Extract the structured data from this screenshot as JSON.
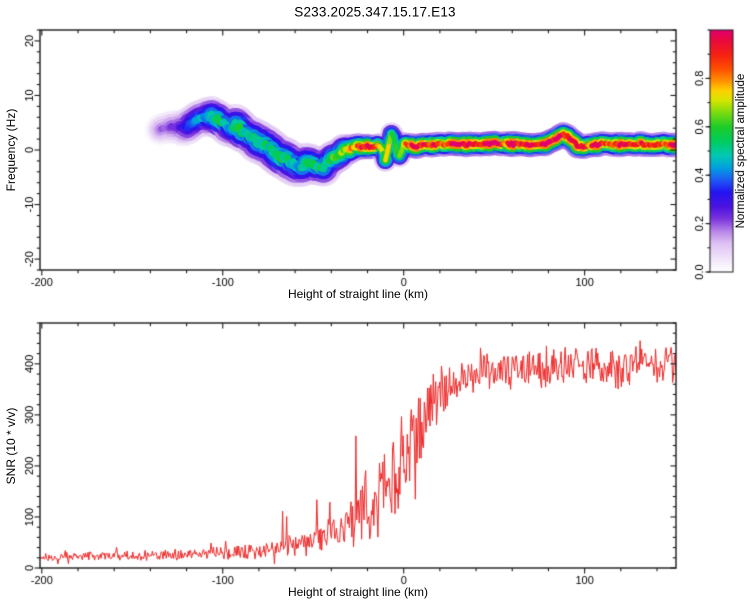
{
  "title": "S233.2025.347.15.17.E13",
  "colors": {
    "background": "#ffffff",
    "frame": "#1c1c1c",
    "text": "#000000",
    "snr_line": "#ee2a2a"
  },
  "chart_data": [
    {
      "type": "heatmap",
      "name": "spectrogram",
      "xlabel": "Height of straight line (km)",
      "ylabel": "Frequency (Hz)",
      "xlim": [
        -201,
        150.5
      ],
      "ylim": [
        -22,
        22
      ],
      "x_ticks": [
        -200,
        -100,
        0,
        100
      ],
      "x_minor_step": 20,
      "y_ticks": [
        20,
        10,
        0,
        -10,
        -20
      ],
      "y_minor_step": 2,
      "colorbar": {
        "label": "Normalized spectral amplitude",
        "ticks": [
          0.0,
          0.2,
          0.4,
          0.6,
          0.8
        ],
        "minor_step": 0.1,
        "range": [
          0.0,
          1.0
        ]
      },
      "colormap_stops": [
        [
          0.0,
          "#ffffff"
        ],
        [
          0.06,
          "#f0e2fa"
        ],
        [
          0.12,
          "#ddc0f2"
        ],
        [
          0.17,
          "#b683e8"
        ],
        [
          0.22,
          "#7a34dd"
        ],
        [
          0.27,
          "#4b13e0"
        ],
        [
          0.33,
          "#2414f2"
        ],
        [
          0.38,
          "#1e5af5"
        ],
        [
          0.43,
          "#00a0e0"
        ],
        [
          0.48,
          "#00c8b4"
        ],
        [
          0.54,
          "#00cc5e"
        ],
        [
          0.6,
          "#1ecc28"
        ],
        [
          0.66,
          "#7edc0e"
        ],
        [
          0.71,
          "#d8e600"
        ],
        [
          0.75,
          "#ffd000"
        ],
        [
          0.79,
          "#ff9000"
        ],
        [
          0.84,
          "#ff4e00"
        ],
        [
          0.9,
          "#f42014"
        ],
        [
          0.96,
          "#ea0840"
        ],
        [
          1.0,
          "#e00070"
        ]
      ],
      "signal_track": [
        [
          -135,
          3.5,
          0.15,
          1.7
        ],
        [
          -128,
          4.5,
          0.22,
          1.8
        ],
        [
          -122,
          4.0,
          0.28,
          1.9
        ],
        [
          -116,
          5.0,
          0.35,
          2.0
        ],
        [
          -111,
          5.8,
          0.45,
          2.1
        ],
        [
          -106,
          6.3,
          0.5,
          2.1
        ],
        [
          -101,
          5.2,
          0.52,
          2.1
        ],
        [
          -97,
          4.0,
          0.48,
          2.1
        ],
        [
          -93,
          4.6,
          0.5,
          2.2
        ],
        [
          -89,
          3.2,
          0.5,
          2.2
        ],
        [
          -85,
          2.4,
          0.52,
          2.2
        ],
        [
          -81,
          1.6,
          0.48,
          2.3
        ],
        [
          -77,
          0.8,
          0.5,
          2.3
        ],
        [
          -73,
          -0.2,
          0.5,
          2.3
        ],
        [
          -69,
          -1.0,
          0.52,
          2.3
        ],
        [
          -65,
          -1.8,
          0.52,
          2.3
        ],
        [
          -61,
          -2.6,
          0.55,
          2.3
        ],
        [
          -57,
          -3.1,
          0.52,
          2.2
        ],
        [
          -53,
          -2.2,
          0.55,
          2.2
        ],
        [
          -49,
          -2.8,
          0.52,
          2.1
        ],
        [
          -45,
          -3.4,
          0.55,
          2.1
        ],
        [
          -41,
          -2.0,
          0.58,
          2.0
        ],
        [
          -37,
          -1.0,
          0.6,
          1.9
        ],
        [
          -33,
          -0.2,
          0.65,
          1.8
        ],
        [
          -29,
          0.4,
          0.72,
          1.6
        ],
        [
          -25,
          0.6,
          0.85,
          1.45
        ],
        [
          -21,
          0.7,
          0.93,
          1.35
        ],
        [
          -17,
          0.6,
          0.9,
          1.35
        ],
        [
          -13,
          0.8,
          0.86,
          1.35
        ],
        [
          -11,
          -0.5,
          0.72,
          1.3
        ],
        [
          -10,
          -1.8,
          0.66,
          1.3
        ],
        [
          -8.5,
          0.2,
          0.7,
          1.3
        ],
        [
          -7,
          2.8,
          0.75,
          1.3
        ],
        [
          -6,
          3.2,
          0.7,
          1.3
        ],
        [
          -4.5,
          0.8,
          0.7,
          1.3
        ],
        [
          -3,
          -1.2,
          0.72,
          1.3
        ],
        [
          -1.5,
          -0.8,
          0.76,
          1.3
        ],
        [
          0,
          1.3,
          0.84,
          1.3
        ],
        [
          2,
          0.9,
          0.86,
          1.3
        ],
        [
          4,
          0.8,
          0.9,
          1.3
        ],
        [
          7,
          0.7,
          0.92,
          1.35
        ],
        [
          10,
          0.8,
          0.9,
          1.35
        ],
        [
          15,
          0.9,
          0.93,
          1.35
        ],
        [
          20,
          1.0,
          0.95,
          1.35
        ],
        [
          30,
          1.1,
          0.96,
          1.35
        ],
        [
          40,
          1.0,
          0.94,
          1.35
        ],
        [
          50,
          1.2,
          0.96,
          1.35
        ],
        [
          60,
          1.1,
          0.92,
          1.35
        ],
        [
          70,
          1.0,
          0.95,
          1.35
        ],
        [
          78,
          1.2,
          0.88,
          1.35
        ],
        [
          83,
          1.8,
          0.92,
          1.35
        ],
        [
          88,
          2.8,
          0.94,
          1.35
        ],
        [
          92,
          2.2,
          0.9,
          1.35
        ],
        [
          96,
          0.8,
          0.86,
          1.35
        ],
        [
          100,
          0.7,
          0.9,
          1.35
        ],
        [
          108,
          1.1,
          0.94,
          1.35
        ],
        [
          118,
          1.0,
          0.92,
          1.35
        ],
        [
          128,
          1.1,
          0.95,
          1.35
        ],
        [
          138,
          1.0,
          0.96,
          1.35
        ],
        [
          150.5,
          1.0,
          0.94,
          1.35
        ]
      ],
      "noise_regions": [
        {
          "x0": -201,
          "x1": -120,
          "count": 1000,
          "mode": "uniform",
          "f_sigma": 0,
          "a_max": 0.4
        },
        {
          "x0": -120,
          "x1": -58,
          "count": 520,
          "mode": "mixed",
          "f_sigma": 7,
          "a_max": 0.38
        },
        {
          "x0": -58,
          "x1": -26,
          "count": 180,
          "mode": "track",
          "f_sigma": 4.5,
          "a_max": 0.32
        },
        {
          "x0": -26,
          "x1": 150,
          "count": 150,
          "mode": "track",
          "f_sigma": 2.2,
          "a_max": 0.26
        }
      ]
    },
    {
      "type": "line",
      "name": "snr",
      "xlabel": "Height of straight line (km)",
      "ylabel": "SNR (10 * v/v)",
      "xlim": [
        -201,
        150.5
      ],
      "ylim": [
        0,
        480
      ],
      "x_ticks": [
        -200,
        -100,
        0,
        100
      ],
      "x_minor_step": 20,
      "y_ticks": [
        0,
        100,
        200,
        300,
        400
      ],
      "y_minor_step": 20,
      "envelope": [
        [
          -201,
          22,
          11,
          10
        ],
        [
          -170,
          23,
          11,
          10
        ],
        [
          -140,
          24,
          12,
          14
        ],
        [
          -115,
          27,
          13,
          25
        ],
        [
          -100,
          30,
          15,
          30
        ],
        [
          -88,
          32,
          16,
          40
        ],
        [
          -78,
          35,
          18,
          60
        ],
        [
          -68,
          38,
          20,
          70
        ],
        [
          -60,
          44,
          24,
          80
        ],
        [
          -52,
          50,
          28,
          100
        ],
        [
          -46,
          58,
          32,
          130
        ],
        [
          -40,
          66,
          38,
          200
        ],
        [
          -34,
          80,
          50,
          260
        ],
        [
          -29,
          92,
          58,
          230
        ],
        [
          -24,
          104,
          64,
          190
        ],
        [
          -19,
          122,
          74,
          170
        ],
        [
          -14,
          142,
          84,
          185
        ],
        [
          -9,
          168,
          94,
          185
        ],
        [
          -4,
          196,
          104,
          160
        ],
        [
          1,
          222,
          108,
          150
        ],
        [
          6,
          248,
          100,
          130
        ],
        [
          11,
          278,
          92,
          110
        ],
        [
          16,
          318,
          72,
          80
        ],
        [
          21,
          348,
          56,
          60
        ],
        [
          26,
          362,
          46,
          55
        ],
        [
          32,
          372,
          42,
          48
        ],
        [
          40,
          380,
          42,
          44
        ],
        [
          50,
          386,
          42,
          42
        ],
        [
          60,
          390,
          44,
          42
        ],
        [
          70,
          382,
          46,
          42
        ],
        [
          80,
          390,
          42,
          44
        ],
        [
          90,
          396,
          42,
          46
        ],
        [
          100,
          392,
          44,
          42
        ],
        [
          110,
          396,
          42,
          42
        ],
        [
          120,
          392,
          46,
          46
        ],
        [
          130,
          400,
          42,
          42
        ],
        [
          140,
          396,
          44,
          46
        ],
        [
          148,
          400,
          46,
          42
        ],
        [
          151,
          385,
          50,
          42
        ]
      ]
    }
  ]
}
